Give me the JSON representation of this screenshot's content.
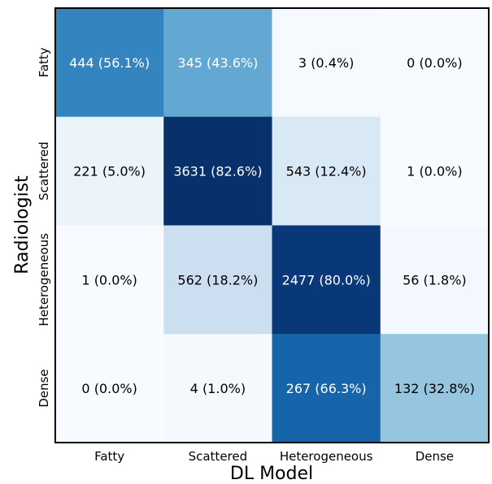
{
  "chart_data": {
    "type": "heatmap",
    "xlabel": "DL Model",
    "ylabel": "Radiologist",
    "x_categories": [
      "Fatty",
      "Scattered",
      "Heterogeneous",
      "Dense"
    ],
    "y_categories": [
      "Fatty",
      "Scattered",
      "Heterogeneous",
      "Dense"
    ],
    "counts": [
      [
        444,
        345,
        3,
        0
      ],
      [
        221,
        3631,
        543,
        1
      ],
      [
        1,
        562,
        2477,
        56
      ],
      [
        0,
        4,
        267,
        132
      ]
    ],
    "percentages": [
      [
        56.1,
        43.6,
        0.4,
        0.0
      ],
      [
        5.0,
        82.6,
        12.4,
        0.0
      ],
      [
        0.0,
        18.2,
        80.0,
        1.8
      ],
      [
        0.0,
        1.0,
        66.3,
        32.8
      ]
    ],
    "labels": [
      [
        "444 (56.1%)",
        "345 (43.6%)",
        "3 (0.4%)",
        "0 (0.0%)"
      ],
      [
        "221 (5.0%)",
        "3631 (82.6%)",
        "543 (12.4%)",
        "1 (0.0%)"
      ],
      [
        "1 (0.0%)",
        "562 (18.2%)",
        "2477 (80.0%)",
        "56 (1.8%)"
      ],
      [
        "0 (0.0%)",
        "4 (1.0%)",
        "267 (66.3%)",
        "132 (32.8%)"
      ]
    ],
    "colormap": "Blues",
    "colorbar": false,
    "grid": false
  }
}
